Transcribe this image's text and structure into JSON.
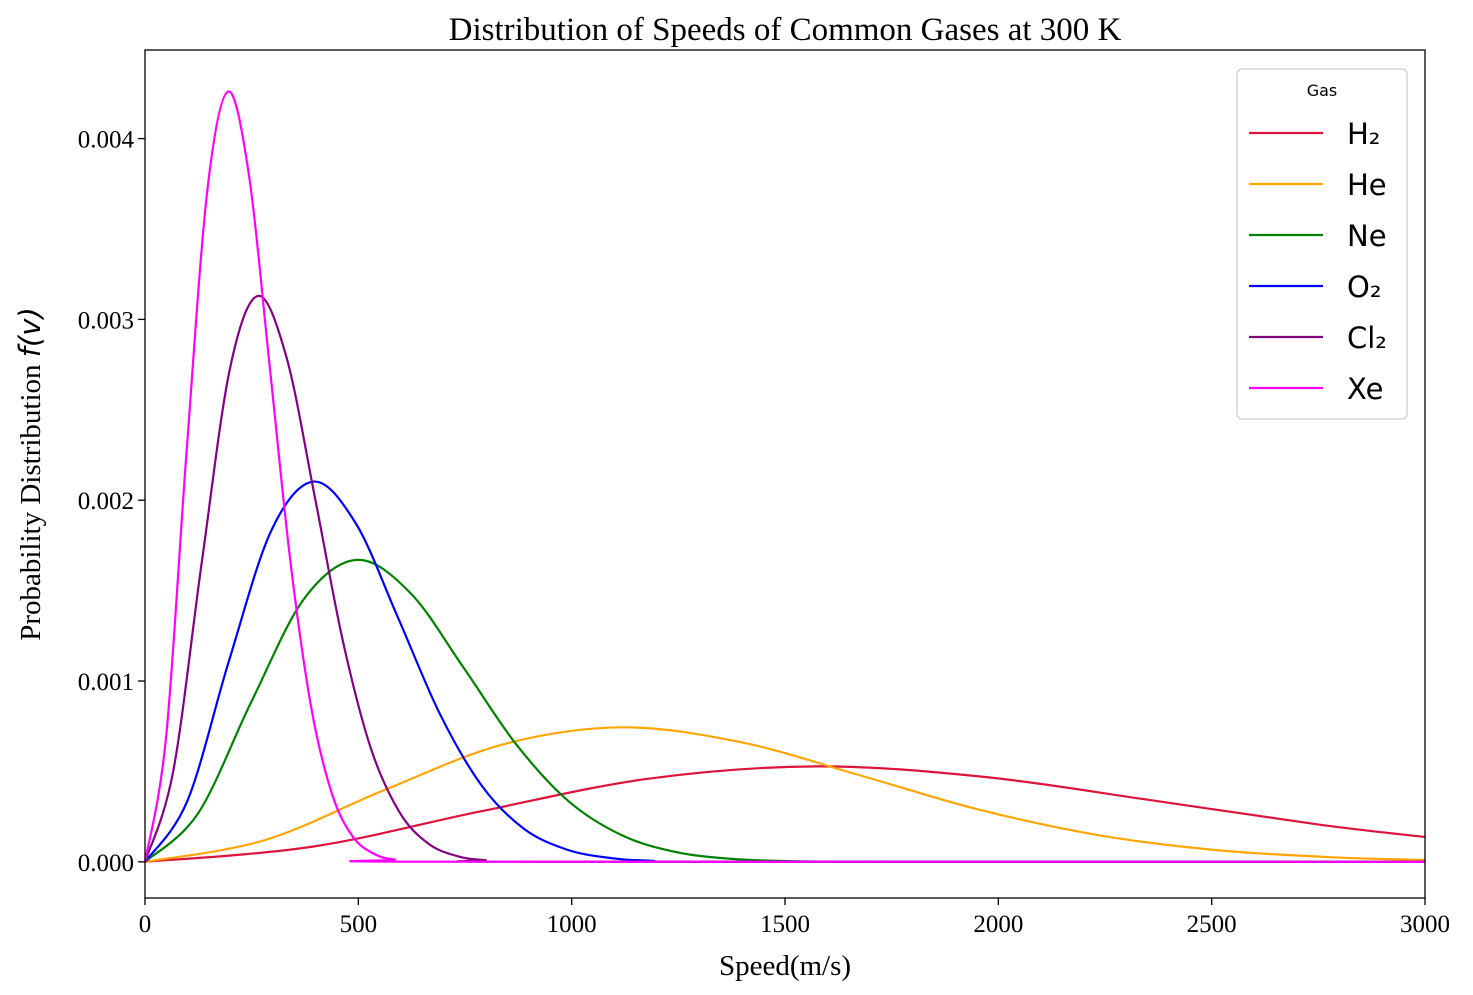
{
  "chart_data": {
    "type": "line",
    "title": "Distribution of Speeds of Common Gases at 300 K",
    "xlabel": "Speed(m/s)",
    "ylabel": "Probability Distribution",
    "ylabel_math": "f(v)",
    "xlim": [
      0,
      3000
    ],
    "ylim": [
      -0.0002,
      0.00449
    ],
    "xticks": [
      0,
      500,
      1000,
      1500,
      2000,
      2500,
      3000
    ],
    "xtick_labels": [
      "0",
      "500",
      "1000",
      "1500",
      "2000",
      "2500",
      "3000"
    ],
    "yticks": [
      0,
      0.001,
      0.002,
      0.003,
      0.004
    ],
    "ytick_labels": [
      "0.000",
      "0.001",
      "0.002",
      "0.003",
      "0.004"
    ],
    "grid": false,
    "legend": {
      "title": "Gas",
      "placement": "top-right"
    },
    "series": [
      {
        "name": "H₂",
        "color": "#dc143c",
        "x": [
          0,
          393,
          787,
          1180,
          1573,
          1966,
          2360,
          2753,
          3000
        ],
        "y": [
          0,
          8.42e-05,
          0.0002793,
          0.0004598,
          0.0005278,
          0.0004699,
          0.0003402,
          0.0002055,
          0.0001374
        ]
      },
      {
        "name": "He",
        "color": "#ffa500",
        "x": [
          0,
          279,
          558,
          837,
          1116,
          1395,
          1674,
          1953,
          2233,
          2512,
          2791,
          3000
        ],
        "y": [
          0,
          0.0001187,
          0.0003937,
          0.0006482,
          0.000744,
          0.0006624,
          0.0004796,
          0.0002896,
          0.0001481,
          6.48e-05,
          2.44e-05,
          1.06e-05
        ]
      },
      {
        "name": "Ne",
        "color": "#008000",
        "x": [
          0,
          124,
          249,
          373,
          497,
          622,
          746,
          870,
          994,
          1119,
          1243,
          1367,
          1492,
          1740,
          3000
        ],
        "y": [
          0,
          0.0002665,
          0.0008838,
          0.001455,
          0.00167,
          0.001487,
          0.001076,
          0.00065,
          0.0003325,
          0.0001455,
          5.48e-05,
          1.78e-05,
          5e-06,
          3e-07,
          0
        ]
      },
      {
        "name": "O₂",
        "color": "#0000ff",
        "x": [
          0,
          99,
          197,
          296,
          395,
          494,
          592,
          691,
          790,
          888,
          987,
          1086,
          1184,
          1382,
          3000
        ],
        "y": [
          0,
          0.0003356,
          0.001113,
          0.001832,
          0.002103,
          0.001872,
          0.001356,
          0.0008187,
          0.0004187,
          0.0001832,
          6.9e-05,
          2.25e-05,
          6.4e-06,
          3e-07,
          0
        ]
      },
      {
        "name": "Cl₂",
        "color": "#800080",
        "x": [
          0,
          66,
          133,
          199,
          265,
          332,
          398,
          464,
          530,
          597,
          663,
          729,
          796,
          928,
          3000
        ],
        "y": [
          0,
          0.0004995,
          0.001656,
          0.002727,
          0.00313,
          0.002787,
          0.002018,
          0.001219,
          0.0006232,
          0.0002726,
          0.0001027,
          3.34e-05,
          9.5e-06,
          5e-07,
          0
        ]
      },
      {
        "name": "Xe",
        "color": "#ff00ff",
        "x": [
          0,
          49,
          97,
          146,
          195,
          244,
          292,
          341,
          390,
          439,
          487,
          536,
          585,
          682,
          3000
        ],
        "y": [
          0,
          0.00068,
          0.002254,
          0.003711,
          0.00426,
          0.003793,
          0.002746,
          0.001658,
          0.0008482,
          0.000371,
          0.0001397,
          4.55e-05,
          1.29e-05,
          7e-07,
          0
        ]
      }
    ]
  }
}
